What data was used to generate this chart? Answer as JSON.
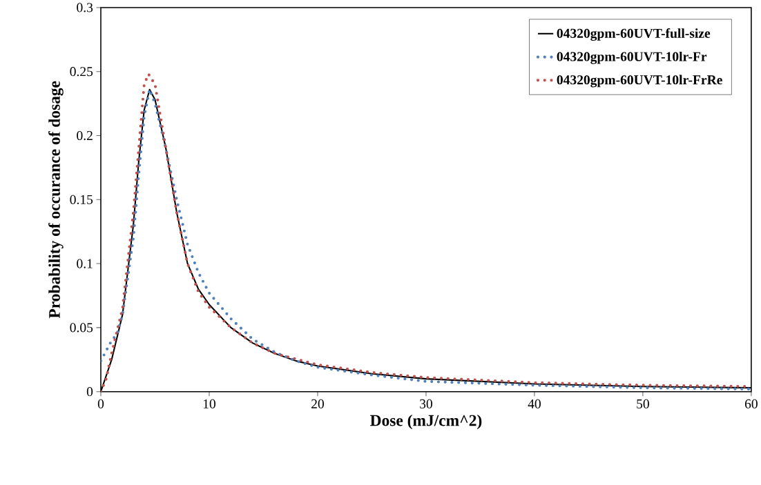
{
  "chart_data": {
    "type": "line",
    "xlabel": "Dose (mJ/cm^2)",
    "ylabel": "Probability of occurance of dosage",
    "xlim": [
      0,
      60
    ],
    "ylim": [
      0,
      0.3
    ],
    "xticks": [
      0,
      10,
      20,
      30,
      40,
      50,
      60
    ],
    "yticks": [
      0,
      0.05,
      0.1,
      0.15,
      0.2,
      0.25,
      0.3
    ],
    "grid": false,
    "legend": "top right",
    "marker": "none",
    "series": [
      {
        "name": "04320gpm-60UVT-full-size",
        "color": "#000000",
        "line_style": "solid",
        "x": [
          0,
          1,
          2,
          3,
          3.5,
          4,
          4.5,
          5,
          6,
          7,
          8,
          9,
          10,
          12,
          14,
          16,
          18,
          20,
          25,
          30,
          35,
          40,
          50,
          60
        ],
        "values": [
          0,
          0.025,
          0.06,
          0.13,
          0.18,
          0.22,
          0.236,
          0.228,
          0.19,
          0.14,
          0.1,
          0.08,
          0.068,
          0.05,
          0.038,
          0.03,
          0.024,
          0.02,
          0.014,
          0.01,
          0.008,
          0.006,
          0.004,
          0.003
        ]
      },
      {
        "name": "04320gpm-60UVT-10lr-Fr",
        "color": "#4f81bd",
        "line_style": "dotted",
        "x": [
          0,
          0.5,
          1,
          1.5,
          2,
          3,
          3.5,
          4,
          4.5,
          5,
          6,
          7,
          8,
          9,
          10,
          12,
          14,
          16,
          18,
          20,
          25,
          30,
          40,
          50,
          60
        ],
        "values": [
          0.024,
          0.032,
          0.04,
          0.045,
          0.06,
          0.12,
          0.17,
          0.215,
          0.236,
          0.225,
          0.19,
          0.15,
          0.115,
          0.093,
          0.077,
          0.057,
          0.041,
          0.031,
          0.024,
          0.019,
          0.013,
          0.008,
          0.005,
          0.003,
          0.002
        ]
      },
      {
        "name": "04320gpm-60UVT-10lr-FrRe",
        "color": "#c0504d",
        "line_style": "dotted",
        "x": [
          0,
          0.5,
          1,
          2,
          3,
          3.5,
          4,
          4.4,
          5,
          6,
          7,
          8,
          9,
          10,
          12,
          14,
          16,
          20,
          25,
          30,
          40,
          50,
          60
        ],
        "values": [
          0,
          0.01,
          0.03,
          0.065,
          0.14,
          0.19,
          0.24,
          0.248,
          0.24,
          0.19,
          0.14,
          0.1,
          0.078,
          0.066,
          0.05,
          0.038,
          0.03,
          0.021,
          0.015,
          0.011,
          0.007,
          0.005,
          0.004
        ]
      }
    ]
  }
}
